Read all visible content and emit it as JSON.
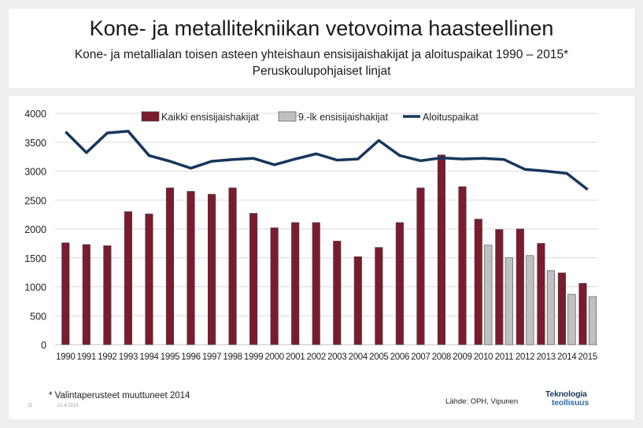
{
  "slide": {
    "title": "Kone- ja metallitekniikan vetovoima haasteellinen",
    "subtitle_line1": "Kone- ja metallialan toisen asteen yhteishaun ensisijaishakijat ja aloituspaikat 1990 – 2015*",
    "subtitle_line2": "Peruskoulupohjaiset linjat",
    "footnote": "* Valintaperusteet muuttuneet 2014",
    "page_number": "11",
    "date": "21.4.2015",
    "source": "Lähde: OPH, Vipunen",
    "logo_line1": "Teknologia",
    "logo_line2": "teollisuus"
  },
  "chart_data": {
    "type": "bar",
    "title": "",
    "xlabel": "",
    "ylabel": "",
    "ylim": [
      0,
      4000
    ],
    "yticks": [
      0,
      500,
      1000,
      1500,
      2000,
      2500,
      3000,
      3500,
      4000
    ],
    "grid": true,
    "legend_position": "top",
    "categories": [
      "1990",
      "1991",
      "1992",
      "1993",
      "1994",
      "1995",
      "1996",
      "1997",
      "1998",
      "1999",
      "2000",
      "2001",
      "2002",
      "2003",
      "2004",
      "2005",
      "2006",
      "2007",
      "2008",
      "2009",
      "2010",
      "2011",
      "2012",
      "2013",
      "2014",
      "2015"
    ],
    "series": [
      {
        "name": "Kaikki ensisijaishakijat",
        "type": "bar",
        "color": "#7b1c2e",
        "values": [
          1760,
          1730,
          1710,
          2300,
          2260,
          2710,
          2650,
          2600,
          2710,
          2270,
          2020,
          2110,
          2110,
          1790,
          1520,
          1680,
          2110,
          2710,
          3280,
          2730,
          2170,
          1990,
          2000,
          1750,
          1240,
          1060
        ]
      },
      {
        "name": "9.-lk ensisijaishakijat",
        "type": "bar",
        "color": "#c0c0c0",
        "values": [
          null,
          null,
          null,
          null,
          null,
          null,
          null,
          null,
          null,
          null,
          null,
          null,
          null,
          null,
          null,
          null,
          null,
          null,
          null,
          null,
          1720,
          1500,
          1540,
          1280,
          870,
          830
        ]
      },
      {
        "name": "Aloituspaikat",
        "type": "line",
        "color": "#17365d",
        "values": [
          3680,
          3320,
          3660,
          3690,
          3270,
          3170,
          3050,
          3170,
          3200,
          3220,
          3110,
          3210,
          3300,
          3190,
          3210,
          3530,
          3270,
          3180,
          3230,
          3210,
          3220,
          3200,
          3030,
          3000,
          2960,
          2680
        ]
      }
    ]
  }
}
